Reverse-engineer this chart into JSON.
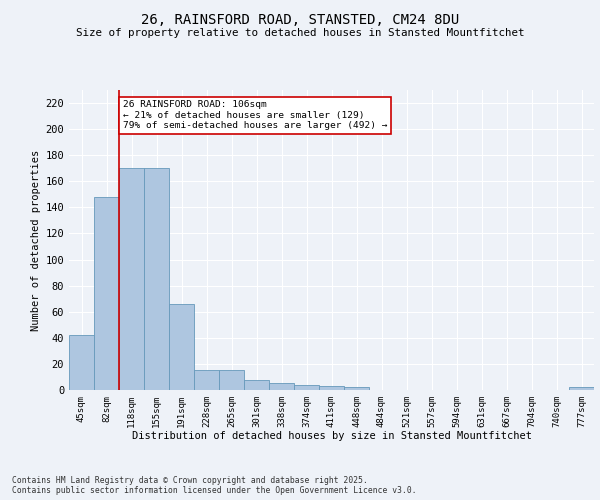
{
  "title1": "26, RAINSFORD ROAD, STANSTED, CM24 8DU",
  "title2": "Size of property relative to detached houses in Stansted Mountfitchet",
  "xlabel": "Distribution of detached houses by size in Stansted Mountfitchet",
  "ylabel": "Number of detached properties",
  "categories": [
    "45sqm",
    "82sqm",
    "118sqm",
    "155sqm",
    "191sqm",
    "228sqm",
    "265sqm",
    "301sqm",
    "338sqm",
    "374sqm",
    "411sqm",
    "448sqm",
    "484sqm",
    "521sqm",
    "557sqm",
    "594sqm",
    "631sqm",
    "667sqm",
    "704sqm",
    "740sqm",
    "777sqm"
  ],
  "values": [
    42,
    148,
    170,
    170,
    66,
    15,
    15,
    8,
    5,
    4,
    3,
    2,
    0,
    0,
    0,
    0,
    0,
    0,
    0,
    0,
    2
  ],
  "bar_color": "#aec6e0",
  "bar_edge_color": "#6699bb",
  "vline_x": 1.5,
  "vline_color": "#cc0000",
  "annotation_text": "26 RAINSFORD ROAD: 106sqm\n← 21% of detached houses are smaller (129)\n79% of semi-detached houses are larger (492) →",
  "annotation_box_color": "#cc0000",
  "ylim": [
    0,
    230
  ],
  "yticks": [
    0,
    20,
    40,
    60,
    80,
    100,
    120,
    140,
    160,
    180,
    200,
    220
  ],
  "background_color": "#eef2f8",
  "grid_color": "#ffffff",
  "footer": "Contains HM Land Registry data © Crown copyright and database right 2025.\nContains public sector information licensed under the Open Government Licence v3.0."
}
